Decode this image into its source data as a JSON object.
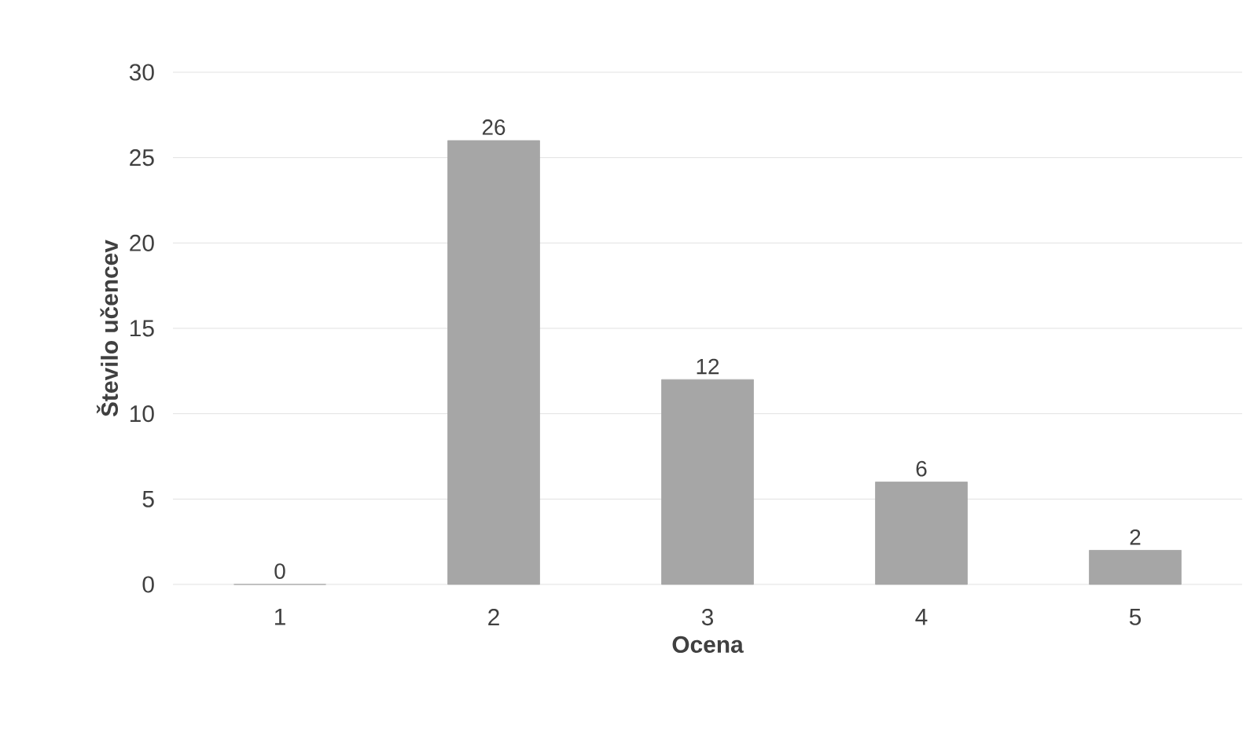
{
  "chart_data": {
    "type": "bar",
    "xlabel": "Ocena",
    "ylabel": "Število učencev",
    "categories": [
      "1",
      "2",
      "3",
      "4",
      "5"
    ],
    "values": [
      0,
      26,
      12,
      6,
      2
    ],
    "color": "#a6a6a6",
    "ylim": [
      0,
      30
    ],
    "yticks": [
      0,
      5,
      10,
      15,
      20,
      25,
      30
    ],
    "grid": "y",
    "data_labels": true
  }
}
